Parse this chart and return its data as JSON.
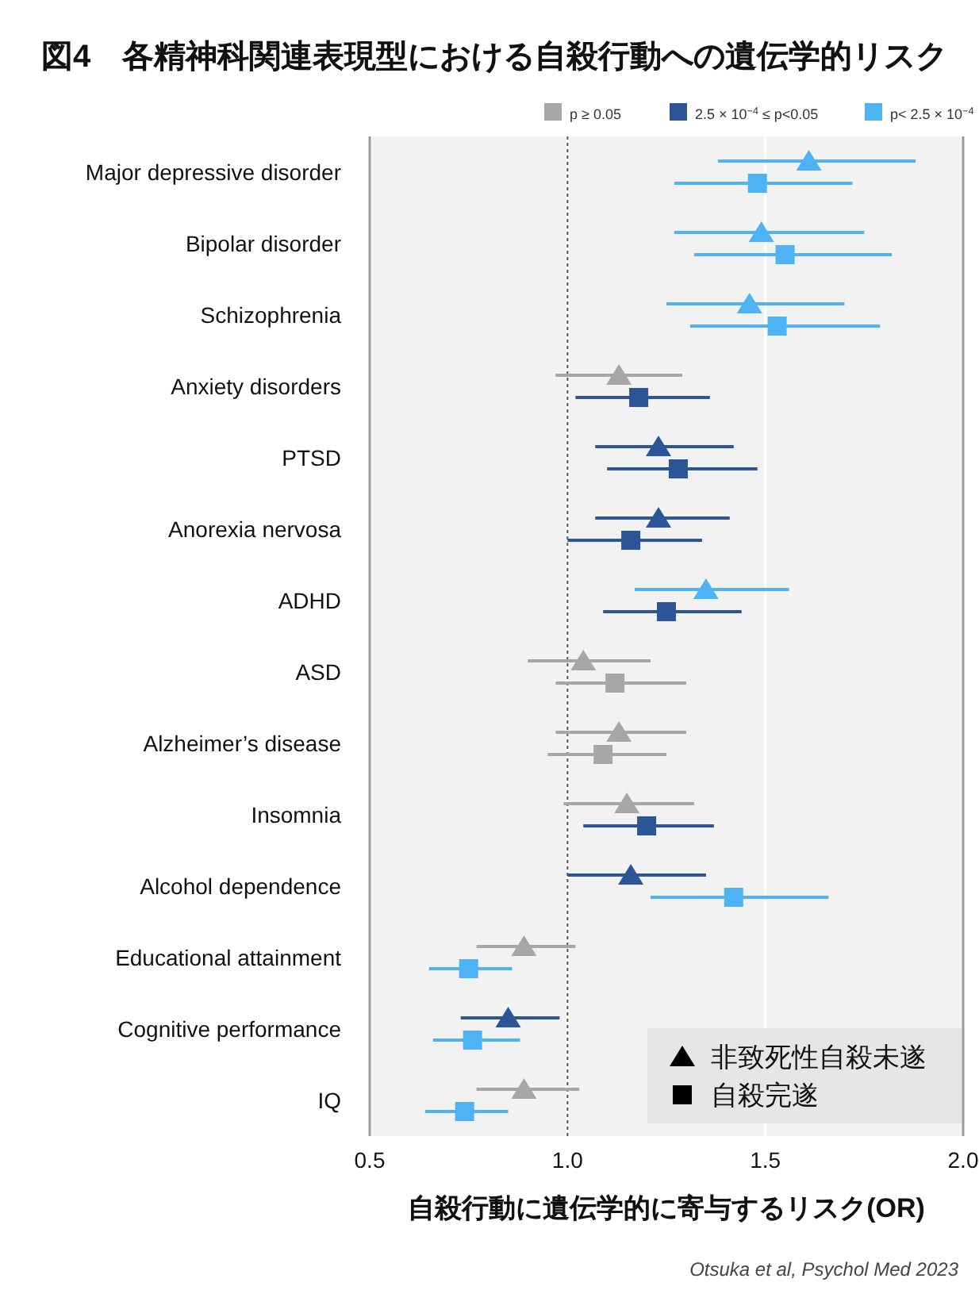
{
  "chart_data": {
    "type": "scatter",
    "orientation": "horizontal",
    "title": "図4　各精神科関連表現型における自殺行動への遺伝学的リスク",
    "xlabel": "自殺行動に遺伝学的に寄与するリスク(OR)",
    "categories": [
      "Major depressive disorder",
      "Bipolar disorder",
      "Schizophrenia",
      "Anxiety disorders",
      "PTSD",
      "Anorexia nervosa",
      "ADHD",
      "ASD",
      "Alzheimer’s disease",
      "Insomnia",
      "Alcohol dependence",
      "Educational attainment",
      "Cognitive performance",
      "IQ"
    ],
    "xlim": [
      0.5,
      2.0
    ],
    "xticks": [
      {
        "value": 0.5,
        "label": "0.5"
      },
      {
        "value": 1.0,
        "label": "1.0"
      },
      {
        "value": 1.5,
        "label": "1.5"
      },
      {
        "value": 2.0,
        "label": "2.0"
      }
    ],
    "grid": "x",
    "legend": "bottom right",
    "ref_lines": [
      {
        "axis": "x",
        "value": 1,
        "line_style": "dotted",
        "color": "#555555"
      }
    ],
    "series": [
      {
        "name": "非致死性自殺未遂",
        "color": "#000000",
        "marker": "triangle",
        "values": [
          1.61,
          1.49,
          1.46,
          1.13,
          1.23,
          1.23,
          1.35,
          1.04,
          1.13,
          1.15,
          1.16,
          0.89,
          0.85,
          0.89
        ],
        "errors": [
          [
            1.38,
            1.88
          ],
          [
            1.27,
            1.75
          ],
          [
            1.25,
            1.7
          ],
          [
            0.97,
            1.29
          ],
          [
            1.07,
            1.42
          ],
          [
            1.07,
            1.41
          ],
          [
            1.17,
            1.56
          ],
          [
            0.9,
            1.21
          ],
          [
            0.97,
            1.3
          ],
          [
            0.99,
            1.32
          ],
          [
            1.0,
            1.35
          ],
          [
            0.77,
            1.02
          ],
          [
            0.73,
            0.98
          ],
          [
            0.77,
            1.03
          ]
        ],
        "colors": [
          "#4db3f5",
          "#4db3f5",
          "#4db3f5",
          "#a8a6a6",
          "#2b5597",
          "#2b5597",
          "#4db3f5",
          "#a8a6a6",
          "#a8a6a6",
          "#a8a6a6",
          "#2b5597",
          "#a8a6a6",
          "#2b5597",
          "#a8a6a6"
        ]
      },
      {
        "name": "自殺完遂",
        "color": "#000000",
        "marker": "square",
        "values": [
          1.48,
          1.55,
          1.53,
          1.18,
          1.28,
          1.16,
          1.25,
          1.12,
          1.09,
          1.2,
          1.42,
          0.75,
          0.76,
          0.74
        ],
        "errors": [
          [
            1.27,
            1.72
          ],
          [
            1.32,
            1.82
          ],
          [
            1.31,
            1.79
          ],
          [
            1.02,
            1.36
          ],
          [
            1.1,
            1.48
          ],
          [
            1.0,
            1.34
          ],
          [
            1.09,
            1.44
          ],
          [
            0.97,
            1.3
          ],
          [
            0.95,
            1.25
          ],
          [
            1.04,
            1.37
          ],
          [
            1.21,
            1.66
          ],
          [
            0.65,
            0.86
          ],
          [
            0.66,
            0.88
          ],
          [
            0.64,
            0.85
          ]
        ],
        "colors": [
          "#4db3f5",
          "#4db3f5",
          "#4db3f5",
          "#2b5597",
          "#2b5597",
          "#2b5597",
          "#2b5597",
          "#a8a6a6",
          "#a8a6a6",
          "#2b5597",
          "#4db3f5",
          "#4db3f5",
          "#4db3f5",
          "#4db3f5"
        ]
      }
    ],
    "annotations": [
      "p ≥ 0.05",
      "2.5 × 10$^{−4}$ ≤ p<0.05",
      "p< 2.5 × 10$^{−4}$",
      "Otsuka et al, Psychol Med 2023"
    ]
  }
}
